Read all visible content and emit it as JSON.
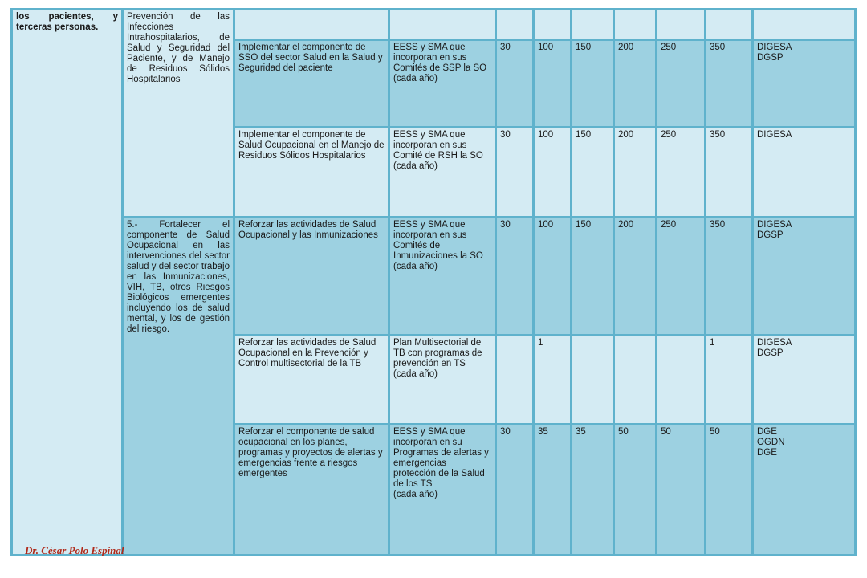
{
  "col1": {
    "text": "los pacientes, y terceras personas."
  },
  "col2": {
    "top": "Prevención de las Infecciones Intrahospitalarios, de Salud y Seguridad del Paciente, y de Manejo de Residuos Sólidos Hospitalarios",
    "bottom": "5.- Fortalecer el componente de Salud Ocupacional en las intervenciones del sector salud y del sector trabajo en las Inmunizaciones, VIH, TB, otros Riesgos Biológicos emergentes incluyendo los de salud mental, y los de gestión del riesgo."
  },
  "rows": [
    {
      "activity": "Implementar el componente de SSO del sector Salud en la Salud y Seguridad del paciente",
      "indicator": "EESS y SMA que incorporan en sus Comités de SSP la SO\n(cada año)",
      "values": [
        "30",
        "100",
        "150",
        "200",
        "250",
        "350"
      ],
      "responsible": "DIGESA\nDGSP"
    },
    {
      "activity": "Implementar el componente de Salud Ocupacional en el Manejo de Residuos Sólidos Hospitalarios",
      "indicator": "EESS y SMA que incorporan en sus Comité de RSH la SO\n(cada año)",
      "values": [
        "30",
        "100",
        "150",
        "200",
        "250",
        "350"
      ],
      "responsible": "DIGESA"
    },
    {
      "activity": "Reforzar las actividades de Salud Ocupacional y las Inmunizaciones",
      "indicator": "EESS y SMA que incorporan en sus Comités de Inmunizaciones la SO\n(cada año)",
      "values": [
        "30",
        "100",
        "150",
        "200",
        "250",
        "350"
      ],
      "responsible": "DIGESA\nDGSP"
    },
    {
      "activity": "Reforzar las actividades de Salud Ocupacional en la Prevención y Control multisectorial de la TB",
      "indicator": "Plan Multisectorial de TB con programas de prevención en TS\n(cada año)",
      "values": [
        "",
        "1",
        "",
        "",
        "",
        "1"
      ],
      "responsible": "DIGESA\nDGSP"
    },
    {
      "activity": "Reforzar el componente de salud ocupacional en los planes, programas y proyectos de alertas y emergencias frente  a riesgos emergentes",
      "indicator": "EESS y SMA que incorporan en su Programas de alertas y emergencias protección de la Salud de los TS\n(cada año)",
      "values": [
        "30",
        "35",
        "35",
        "50",
        "50",
        "50"
      ],
      "responsible": "DGE\nOGDN\nDGE"
    }
  ],
  "footer": "Dr. César Polo Espinal"
}
